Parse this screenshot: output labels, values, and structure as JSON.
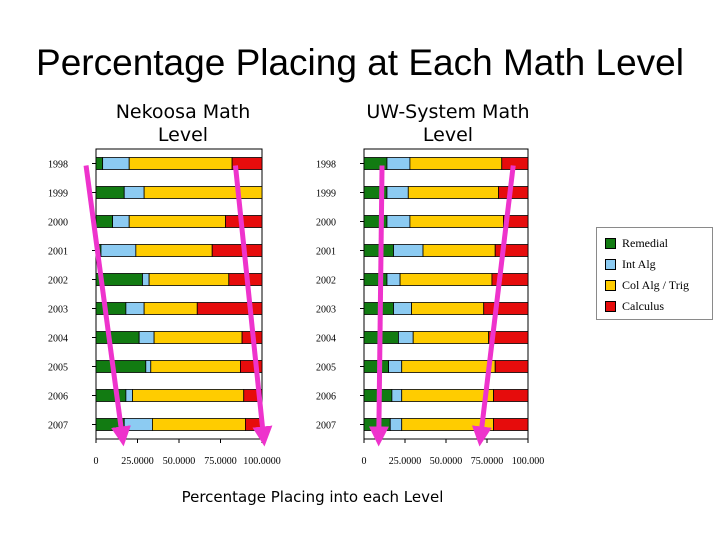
{
  "title": "Percentage Placing at Each Math Level",
  "footer": "Percentage Placing into each Level",
  "colors": {
    "Remedial": "#127b12",
    "Int Alg": "#8ccbf2",
    "Col Alg / Trig": "#ffcc00",
    "Calculus": "#e60c0c",
    "arrow": "#ee33cc"
  },
  "legend": [
    "Remedial",
    "Int Alg",
    "Col Alg / Trig",
    "Calculus"
  ],
  "chart_data": [
    {
      "type": "bar",
      "stacked": true,
      "orientation": "horizontal",
      "title_lines": [
        "Nekoosa Math",
        "Level"
      ],
      "categories": [
        "1998",
        "1999",
        "2000",
        "2001",
        "2002",
        "2003",
        "2004",
        "2005",
        "2006",
        "2007"
      ],
      "series": [
        {
          "name": "Remedial",
          "values": [
            4,
            17,
            10,
            3,
            28,
            18,
            26,
            30,
            18,
            17
          ]
        },
        {
          "name": "Int Alg",
          "values": [
            16,
            12,
            10,
            21,
            4,
            11,
            9,
            3,
            4,
            17
          ]
        },
        {
          "name": "Col Alg / Trig",
          "values": [
            62,
            71,
            58,
            46,
            48,
            32,
            53,
            54,
            67,
            56
          ]
        },
        {
          "name": "Calculus",
          "values": [
            18,
            0,
            22,
            30,
            20,
            39,
            12,
            13,
            11,
            10
          ]
        }
      ],
      "xlim": [
        0,
        100
      ],
      "xticks": [
        "0",
        "25.0000",
        "50.0000",
        "75.0000",
        "100.0000"
      ],
      "arrows": [
        [
          -6,
          1,
          16,
          10
        ],
        [
          84,
          1,
          101,
          10
        ]
      ]
    },
    {
      "type": "bar",
      "stacked": true,
      "orientation": "horizontal",
      "title_lines": [
        "UW-System Math",
        "Level"
      ],
      "categories": [
        "1998",
        "1999",
        "2000",
        "2001",
        "2002",
        "2003",
        "2004",
        "2005",
        "2006",
        "2007"
      ],
      "series": [
        {
          "name": "Remedial",
          "values": [
            14,
            14,
            14,
            18,
            14,
            18,
            21,
            15,
            17,
            16
          ]
        },
        {
          "name": "Int Alg",
          "values": [
            14,
            13,
            14,
            18,
            8,
            11,
            9,
            8,
            6,
            7
          ]
        },
        {
          "name": "Col Alg / Trig",
          "values": [
            56,
            55,
            57,
            44,
            56,
            44,
            46,
            57,
            56,
            56
          ]
        },
        {
          "name": "Calculus",
          "values": [
            16,
            18,
            15,
            20,
            22,
            27,
            24,
            20,
            21,
            21
          ]
        }
      ],
      "xlim": [
        0,
        100
      ],
      "xticks": [
        "0",
        "25.0000",
        "50.0000",
        "75.0000",
        "100.000"
      ],
      "arrows": [
        [
          11,
          1,
          9,
          10
        ],
        [
          91,
          1,
          71,
          10
        ]
      ]
    }
  ]
}
